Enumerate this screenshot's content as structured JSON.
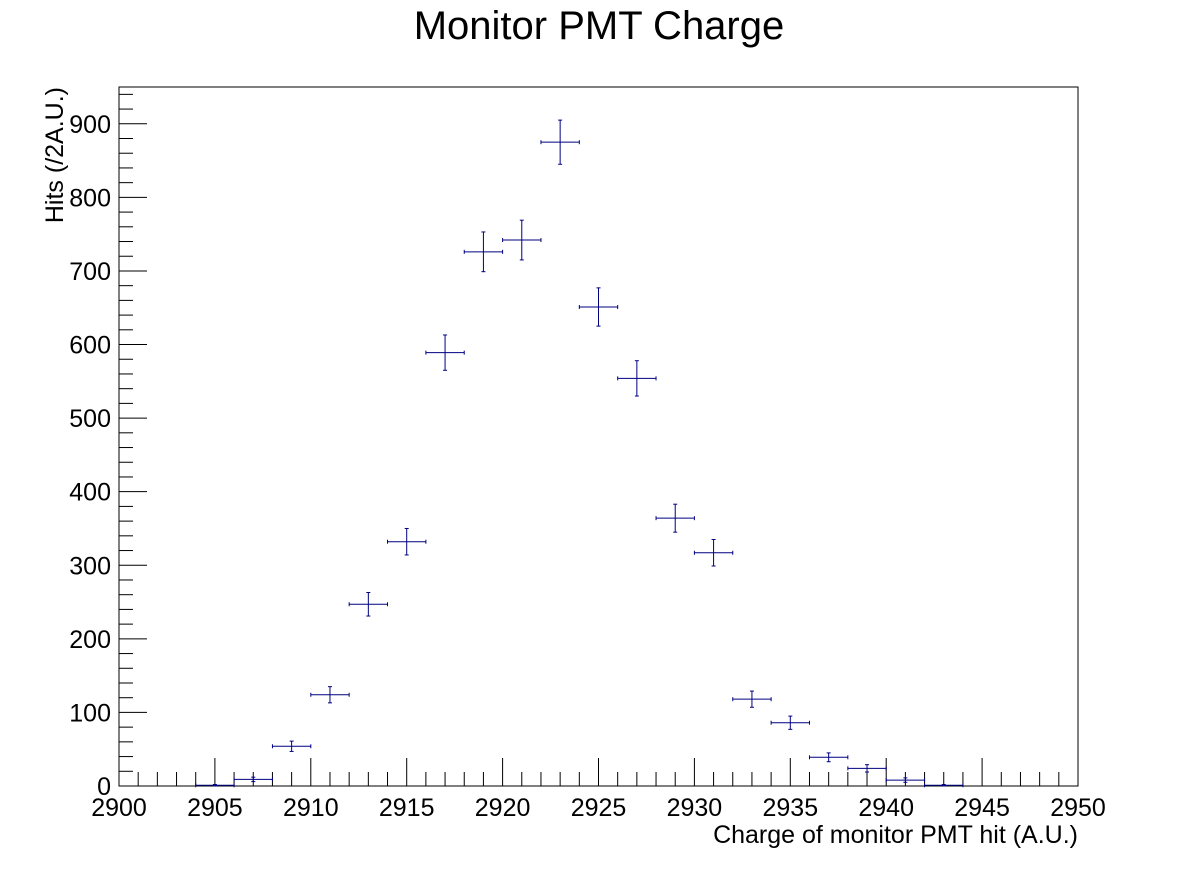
{
  "chart_data": {
    "type": "scatter",
    "title": "Monitor PMT Charge",
    "xlabel": "Charge of monitor PMT hit (A.U.)",
    "ylabel": "Hits (/2A.U.)",
    "xlim": [
      2900,
      2950
    ],
    "ylim": [
      0,
      950
    ],
    "x_ticks": [
      2900,
      2905,
      2910,
      2915,
      2920,
      2925,
      2930,
      2935,
      2940,
      2945,
      2950
    ],
    "y_ticks": [
      0,
      100,
      200,
      300,
      400,
      500,
      600,
      700,
      800,
      900
    ],
    "grid": false,
    "legend": "none",
    "marker_color": "#000080",
    "bin_width": 2,
    "series": [
      {
        "x": [
          2905,
          2907,
          2909,
          2911,
          2913,
          2915,
          2917,
          2919,
          2921,
          2923,
          2925,
          2927,
          2929,
          2931,
          2933,
          2935,
          2937,
          2939,
          2941,
          2943
        ],
        "values": [
          1,
          9,
          54,
          124,
          247,
          332,
          589,
          726,
          742,
          875,
          651,
          554,
          364,
          317,
          118,
          86,
          39,
          24,
          8,
          1
        ],
        "errors": [
          1,
          3,
          7,
          11,
          16,
          18,
          24,
          27,
          27,
          30,
          26,
          24,
          19,
          18,
          11,
          9,
          6,
          5,
          3,
          1
        ]
      }
    ]
  }
}
